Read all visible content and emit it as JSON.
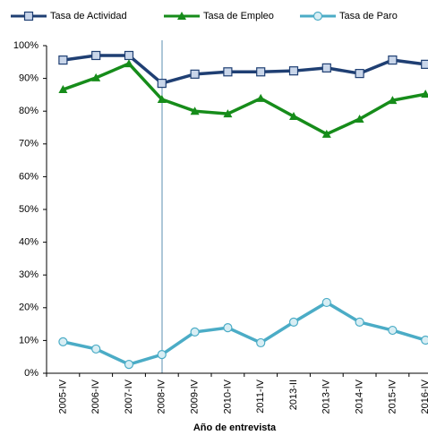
{
  "chart_data": {
    "type": "line",
    "x_label": "Año de entrevista",
    "categories": [
      "2005-IV",
      "2006-IV",
      "2007-IV",
      "2008-IV",
      "2009-IV",
      "2010-IV",
      "2011-IV",
      "2013-II",
      "2013-IV",
      "2014-IV",
      "2015-IV",
      "2016-IV"
    ],
    "series": [
      {
        "name": "Tasa de Actividad",
        "color": "#1f3f73",
        "marker": "square",
        "values": [
          95.6,
          97,
          97,
          88.5,
          91.3,
          92,
          92,
          92.3,
          93.2,
          91.5,
          95.6,
          94.3
        ]
      },
      {
        "name": "Tasa de Empleo",
        "color": "#168c1a",
        "marker": "triangle",
        "values": [
          86.6,
          90.2,
          94.5,
          83.6,
          80,
          79.2,
          83.9,
          78.4,
          73,
          77.6,
          83.3,
          85.2
        ]
      },
      {
        "name": "Tasa de Paro",
        "color": "#4bacc6",
        "marker": "circle",
        "values": [
          9.6,
          7.4,
          2.7,
          5.7,
          12.6,
          13.9,
          9.3,
          15.6,
          21.6,
          15.6,
          13.1,
          10.1
        ]
      }
    ],
    "ylim": [
      0,
      100
    ],
    "yticks": [
      {
        "value": 0,
        "label": "0%"
      },
      {
        "value": 10,
        "label": "10%"
      },
      {
        "value": 20,
        "label": "20%"
      },
      {
        "value": 30,
        "label": "30%"
      },
      {
        "value": 40,
        "label": "40%"
      },
      {
        "value": 50,
        "label": "50%"
      },
      {
        "value": 60,
        "label": "60%"
      },
      {
        "value": 70,
        "label": "70%"
      },
      {
        "value": 80,
        "label": "80%"
      },
      {
        "value": 90,
        "label": "90%"
      },
      {
        "value": 100,
        "label": "100%"
      }
    ],
    "legend": "top"
  }
}
